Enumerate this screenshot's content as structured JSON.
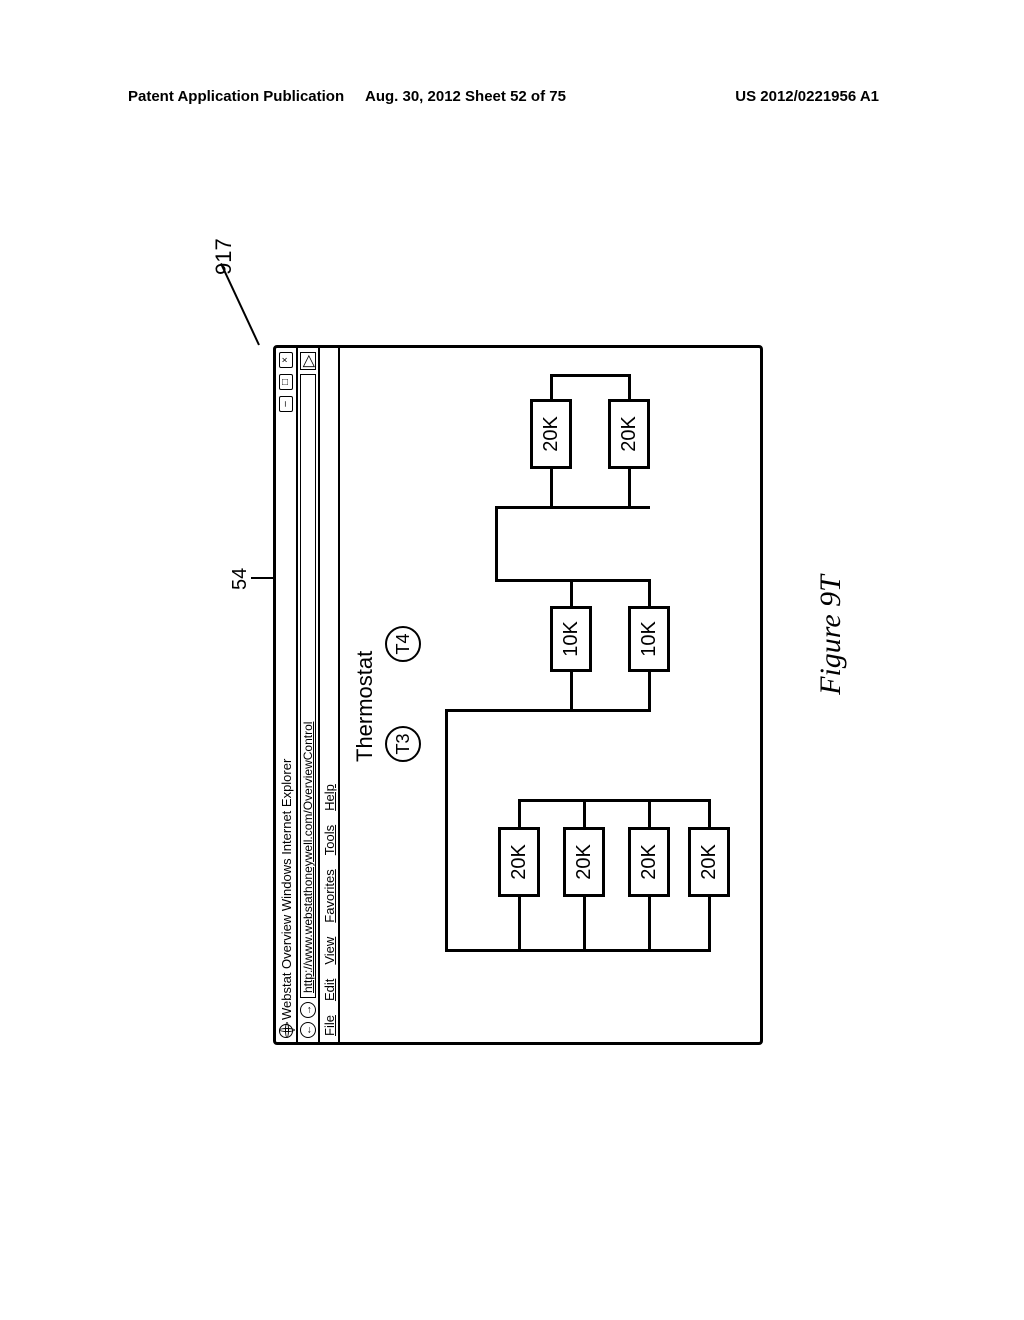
{
  "header": {
    "left": "Patent Application Publication",
    "mid": "Aug. 30, 2012  Sheet 52 of 75",
    "right": "US 2012/0221956 A1"
  },
  "callouts": {
    "ref54": "54",
    "ref917": "917"
  },
  "browser": {
    "title": "Webstat Overview  Windows Internet Explorer",
    "url": "http://www.webstathoneywell.com/OverviewControl",
    "min": "–",
    "max": "□",
    "close": "×",
    "go": "▷",
    "back": "←",
    "fwd": "→",
    "menu": {
      "file": "File",
      "edit": "Edit",
      "view": "View",
      "favorites": "Favorites",
      "tools": "Tools",
      "help": "Help"
    }
  },
  "content": {
    "thermostat_title": "Thermostat",
    "t3": "T3",
    "t4": "T4"
  },
  "blocks": {
    "left": [
      "20K",
      "20K",
      "20K",
      "20K"
    ],
    "mid": [
      "10K",
      "10K"
    ],
    "right": [
      "20K",
      "20K"
    ]
  },
  "caption": "Figure 9T",
  "colors": {
    "stroke": "#000000",
    "bg": "#ffffff"
  }
}
